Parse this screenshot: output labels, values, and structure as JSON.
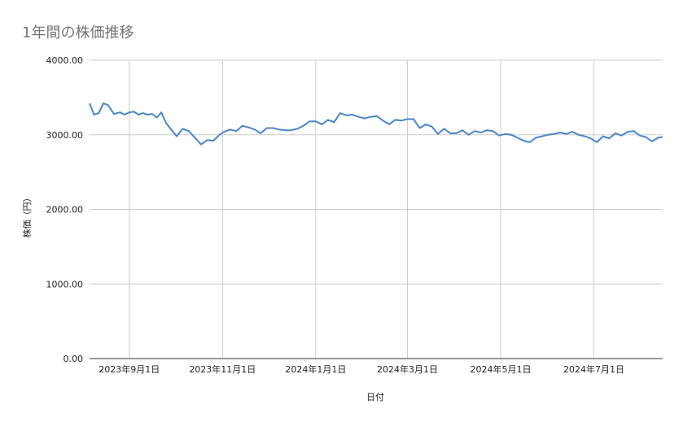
{
  "chart_data": {
    "type": "line",
    "title": "1年間の株価推移",
    "xlabel": "日付",
    "ylabel": "株価（円）",
    "ylim": [
      0,
      4000
    ],
    "y_ticks": [
      "0.00",
      "1000.00",
      "2000.00",
      "3000.00",
      "4000.00"
    ],
    "x_ticks": [
      "2023年9月1日",
      "2023年11月1日",
      "2024年1月1日",
      "2024年3月1日",
      "2024年5月1日",
      "2024年7月1日"
    ],
    "x_range": [
      "2023-08-06",
      "2024-08-15"
    ],
    "grid": true,
    "color": "#4a86c8",
    "series": [
      {
        "name": "",
        "x": [
          "2023-08-06",
          "2023-08-09",
          "2023-08-12",
          "2023-08-15",
          "2023-08-18",
          "2023-08-22",
          "2023-08-26",
          "2023-08-29",
          "2023-09-01",
          "2023-09-04",
          "2023-09-07",
          "2023-09-10",
          "2023-09-13",
          "2023-09-16",
          "2023-09-19",
          "2023-09-22",
          "2023-09-25",
          "2023-09-28",
          "2023-10-02",
          "2023-10-06",
          "2023-10-10",
          "2023-10-14",
          "2023-10-18",
          "2023-10-22",
          "2023-10-26",
          "2023-10-30",
          "2023-11-02",
          "2023-11-06",
          "2023-11-10",
          "2023-11-14",
          "2023-11-18",
          "2023-11-22",
          "2023-11-26",
          "2023-11-30",
          "2023-12-04",
          "2023-12-08",
          "2023-12-12",
          "2023-12-16",
          "2023-12-20",
          "2023-12-24",
          "2023-12-28",
          "2024-01-01",
          "2024-01-05",
          "2024-01-09",
          "2024-01-13",
          "2024-01-17",
          "2024-01-21",
          "2024-01-25",
          "2024-01-29",
          "2024-02-02",
          "2024-02-06",
          "2024-02-10",
          "2024-02-14",
          "2024-02-18",
          "2024-02-22",
          "2024-02-26",
          "2024-03-01",
          "2024-03-05",
          "2024-03-09",
          "2024-03-13",
          "2024-03-17",
          "2024-03-21",
          "2024-03-25",
          "2024-03-29",
          "2024-04-02",
          "2024-04-06",
          "2024-04-10",
          "2024-04-14",
          "2024-04-18",
          "2024-04-22",
          "2024-04-26",
          "2024-04-30",
          "2024-05-04",
          "2024-05-08",
          "2024-05-12",
          "2024-05-16",
          "2024-05-20",
          "2024-05-24",
          "2024-05-28",
          "2024-06-01",
          "2024-06-05",
          "2024-06-09",
          "2024-06-13",
          "2024-06-17",
          "2024-06-21",
          "2024-06-25",
          "2024-06-29",
          "2024-07-03",
          "2024-07-07",
          "2024-07-11",
          "2024-07-15",
          "2024-07-19",
          "2024-07-23",
          "2024-07-27",
          "2024-07-31",
          "2024-08-04",
          "2024-08-08",
          "2024-08-12",
          "2024-08-15"
        ],
        "values": [
          3420,
          3270,
          3290,
          3420,
          3400,
          3280,
          3300,
          3270,
          3300,
          3310,
          3270,
          3290,
          3270,
          3280,
          3230,
          3300,
          3160,
          3080,
          2980,
          3080,
          3050,
          2960,
          2870,
          2930,
          2920,
          3000,
          3040,
          3070,
          3050,
          3120,
          3100,
          3070,
          3020,
          3090,
          3090,
          3070,
          3060,
          3060,
          3080,
          3120,
          3180,
          3180,
          3140,
          3200,
          3170,
          3290,
          3260,
          3270,
          3240,
          3220,
          3240,
          3250,
          3190,
          3140,
          3200,
          3190,
          3210,
          3210,
          3090,
          3140,
          3110,
          3010,
          3080,
          3020,
          3020,
          3060,
          3000,
          3050,
          3030,
          3060,
          3050,
          2990,
          3010,
          3000,
          2960,
          2920,
          2900,
          2960,
          2980,
          3000,
          3010,
          3030,
          3010,
          3040,
          3000,
          2980,
          2950,
          2900,
          2980,
          2950,
          3020,
          2990,
          3040,
          3050,
          2990,
          2970,
          2910,
          2960,
          2970
        ]
      }
    ]
  }
}
